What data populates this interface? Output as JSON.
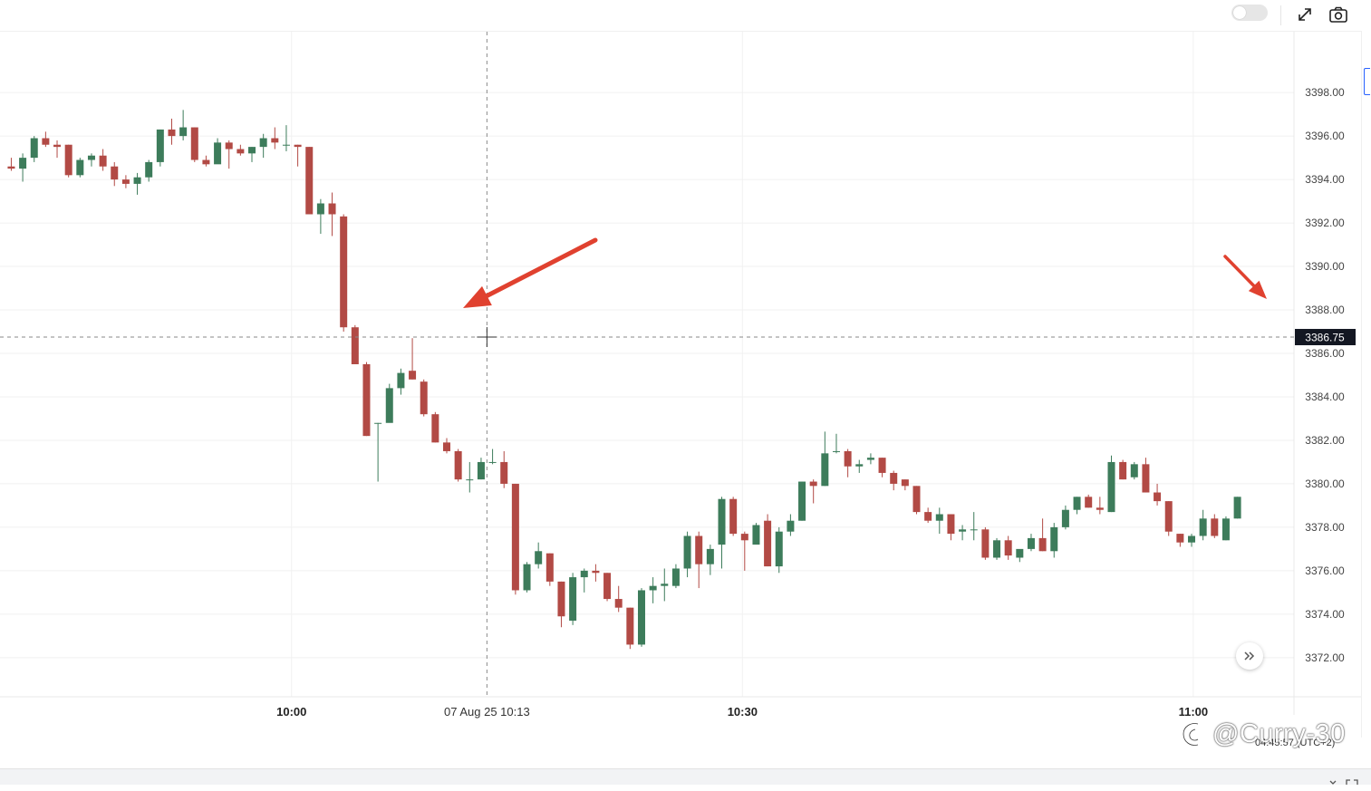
{
  "toolbar": {
    "toggle_state": "off",
    "icons": [
      "fullscreen-icon",
      "camera-icon"
    ]
  },
  "crosshair": {
    "time_label": "07 Aug 25 10:13",
    "price_label": "3386.75"
  },
  "footer": {
    "clock": "04:45:57 (UTC+2)",
    "watermark": "@Curry-30",
    "watermark_icon": "weibo-logo-icon"
  },
  "colors": {
    "up": "#3d7c5b",
    "down": "#b24a45",
    "arrow": "#e0412f",
    "grid": "#f1f1f1",
    "price_tag_bg": "#131722"
  },
  "chart_data": {
    "type": "candlestick",
    "x_tick_labels": [
      "10:00",
      "10:30",
      "11:00"
    ],
    "y_tick_labels": [
      "3398.00",
      "3396.00",
      "3394.00",
      "3392.00",
      "3390.00",
      "3388.00",
      "3386.00",
      "3384.00",
      "3382.00",
      "3380.00",
      "3378.00",
      "3376.00",
      "3374.00",
      "3372.00"
    ],
    "ylim": [
      3370.2,
      3400.8
    ],
    "xlim_minutes_from_10": [
      -19.4,
      66.7
    ],
    "grid": true,
    "candles_ohlc": [
      [
        3394.6,
        3395.0,
        3394.4,
        3394.5
      ],
      [
        3394.5,
        3395.2,
        3393.9,
        3395.0
      ],
      [
        3395.0,
        3396.0,
        3394.8,
        3395.9
      ],
      [
        3395.9,
        3396.2,
        3395.5,
        3395.6
      ],
      [
        3395.6,
        3395.8,
        3395.0,
        3395.5
      ],
      [
        3395.6,
        3395.6,
        3394.1,
        3394.2
      ],
      [
        3394.2,
        3395.0,
        3394.1,
        3394.9
      ],
      [
        3394.9,
        3395.2,
        3394.6,
        3395.1
      ],
      [
        3395.1,
        3395.4,
        3394.4,
        3394.6
      ],
      [
        3394.6,
        3394.8,
        3393.7,
        3394.0
      ],
      [
        3394.0,
        3394.2,
        3393.6,
        3393.8
      ],
      [
        3393.8,
        3394.3,
        3393.3,
        3394.1
      ],
      [
        3394.1,
        3394.9,
        3393.9,
        3394.8
      ],
      [
        3394.8,
        3396.3,
        3394.6,
        3396.3
      ],
      [
        3396.3,
        3396.8,
        3395.6,
        3396.0
      ],
      [
        3396.0,
        3397.2,
        3395.8,
        3396.4
      ],
      [
        3396.4,
        3396.4,
        3394.8,
        3394.9
      ],
      [
        3394.9,
        3395.1,
        3394.6,
        3394.7
      ],
      [
        3394.7,
        3395.9,
        3394.8,
        3395.7
      ],
      [
        3395.7,
        3395.8,
        3394.5,
        3395.4
      ],
      [
        3395.4,
        3395.6,
        3395.1,
        3395.2
      ],
      [
        3395.2,
        3395.5,
        3394.8,
        3395.5
      ],
      [
        3395.5,
        3396.1,
        3395.0,
        3395.9
      ],
      [
        3395.9,
        3396.4,
        3395.4,
        3395.7
      ],
      [
        3395.6,
        3396.5,
        3395.3,
        3395.6
      ],
      [
        3395.6,
        3395.6,
        3394.6,
        3395.5
      ],
      [
        3395.5,
        3395.5,
        3392.4,
        3392.4
      ],
      [
        3392.4,
        3393.1,
        3391.5,
        3392.9
      ],
      [
        3392.9,
        3393.4,
        3391.4,
        3392.4
      ],
      [
        3392.3,
        3392.4,
        3387.0,
        3387.2
      ],
      [
        3387.2,
        3387.3,
        3385.5,
        3385.5
      ],
      [
        3385.5,
        3385.6,
        3382.2,
        3382.2
      ],
      [
        3382.8,
        3382.8,
        3380.1,
        3382.8
      ],
      [
        3382.8,
        3384.6,
        3382.9,
        3384.4
      ],
      [
        3384.4,
        3385.3,
        3384.1,
        3385.1
      ],
      [
        3385.2,
        3386.7,
        3384.8,
        3384.8
      ],
      [
        3384.7,
        3384.8,
        3383.1,
        3383.2
      ],
      [
        3383.2,
        3383.3,
        3381.9,
        3381.9
      ],
      [
        3381.9,
        3382.1,
        3381.4,
        3381.5
      ],
      [
        3381.5,
        3381.6,
        3380.1,
        3380.2
      ],
      [
        3380.2,
        3381.0,
        3379.6,
        3380.2
      ],
      [
        3380.2,
        3381.2,
        3380.2,
        3381.0
      ],
      [
        3381.0,
        3381.6,
        3380.9,
        3381.0
      ],
      [
        3381.0,
        3381.5,
        3379.8,
        3380.0
      ],
      [
        3380.0,
        3380.0,
        3374.9,
        3375.1
      ],
      [
        3375.1,
        3376.4,
        3375.0,
        3376.3
      ],
      [
        3376.3,
        3377.3,
        3376.1,
        3376.9
      ],
      [
        3376.8,
        3376.8,
        3375.3,
        3375.5
      ],
      [
        3375.5,
        3375.5,
        3373.4,
        3373.9
      ],
      [
        3373.7,
        3375.9,
        3373.5,
        3375.7
      ],
      [
        3375.7,
        3376.1,
        3375.0,
        3376.0
      ],
      [
        3376.0,
        3376.3,
        3375.5,
        3375.9
      ],
      [
        3375.9,
        3375.9,
        3374.6,
        3374.7
      ],
      [
        3374.7,
        3375.3,
        3374.1,
        3374.3
      ],
      [
        3374.3,
        3374.3,
        3372.4,
        3372.6
      ],
      [
        3372.6,
        3375.2,
        3372.5,
        3375.1
      ],
      [
        3375.1,
        3375.7,
        3374.5,
        3375.3
      ],
      [
        3375.3,
        3376.1,
        3374.6,
        3375.4
      ],
      [
        3375.3,
        3376.3,
        3375.2,
        3376.1
      ],
      [
        3376.1,
        3377.8,
        3375.7,
        3377.6
      ],
      [
        3377.6,
        3377.8,
        3375.2,
        3376.3
      ],
      [
        3376.3,
        3377.2,
        3375.8,
        3377.0
      ],
      [
        3377.2,
        3379.4,
        3376.1,
        3379.3
      ],
      [
        3379.3,
        3379.4,
        3377.6,
        3377.7
      ],
      [
        3377.7,
        3377.8,
        3376.0,
        3377.4
      ],
      [
        3377.2,
        3378.2,
        3377.3,
        3378.1
      ],
      [
        3378.3,
        3378.6,
        3376.2,
        3376.2
      ],
      [
        3376.2,
        3378.0,
        3375.9,
        3377.8
      ],
      [
        3377.8,
        3378.6,
        3377.6,
        3378.3
      ],
      [
        3378.3,
        3380.1,
        3378.3,
        3380.1
      ],
      [
        3380.1,
        3380.2,
        3379.1,
        3379.9
      ],
      [
        3379.9,
        3382.4,
        3379.9,
        3381.4
      ],
      [
        3381.5,
        3382.3,
        3381.4,
        3381.5
      ],
      [
        3381.5,
        3381.6,
        3380.3,
        3380.8
      ],
      [
        3380.8,
        3381.1,
        3380.5,
        3380.9
      ],
      [
        3381.1,
        3381.4,
        3380.9,
        3381.2
      ],
      [
        3381.2,
        3381.2,
        3380.3,
        3380.5
      ],
      [
        3380.5,
        3380.6,
        3379.7,
        3380.0
      ],
      [
        3380.2,
        3380.2,
        3379.7,
        3379.9
      ],
      [
        3379.9,
        3379.9,
        3378.6,
        3378.7
      ],
      [
        3378.7,
        3378.9,
        3378.2,
        3378.3
      ],
      [
        3378.3,
        3378.9,
        3377.7,
        3378.6
      ],
      [
        3378.6,
        3378.6,
        3377.4,
        3377.7
      ],
      [
        3377.8,
        3378.1,
        3377.4,
        3377.9
      ],
      [
        3377.9,
        3378.7,
        3377.4,
        3377.9
      ],
      [
        3377.9,
        3378.0,
        3376.5,
        3376.6
      ],
      [
        3376.6,
        3377.5,
        3376.5,
        3377.4
      ],
      [
        3377.4,
        3377.6,
        3376.5,
        3376.7
      ],
      [
        3376.6,
        3376.8,
        3376.4,
        3377.0
      ],
      [
        3377.0,
        3377.7,
        3376.9,
        3377.5
      ],
      [
        3377.5,
        3378.4,
        3376.9,
        3376.9
      ],
      [
        3376.9,
        3378.2,
        3376.6,
        3378.0
      ],
      [
        3378.0,
        3379.0,
        3377.9,
        3378.8
      ],
      [
        3378.8,
        3379.4,
        3378.6,
        3379.4
      ],
      [
        3379.4,
        3379.5,
        3378.9,
        3378.9
      ],
      [
        3378.9,
        3379.4,
        3378.6,
        3378.8
      ],
      [
        3378.7,
        3381.3,
        3378.7,
        3381.0
      ],
      [
        3381.0,
        3381.1,
        3380.2,
        3380.2
      ],
      [
        3380.3,
        3381.0,
        3380.2,
        3380.9
      ],
      [
        3380.9,
        3381.2,
        3379.6,
        3379.6
      ],
      [
        3379.6,
        3380.0,
        3379.0,
        3379.2
      ],
      [
        3379.2,
        3379.2,
        3377.6,
        3377.8
      ],
      [
        3377.7,
        3377.7,
        3377.1,
        3377.3
      ],
      [
        3377.3,
        3377.7,
        3377.1,
        3377.6
      ],
      [
        3377.6,
        3378.8,
        3377.4,
        3378.4
      ],
      [
        3378.4,
        3378.6,
        3377.5,
        3377.6
      ],
      [
        3377.4,
        3378.5,
        3377.4,
        3378.4
      ],
      [
        3378.4,
        3379.4,
        3378.4,
        3379.4
      ]
    ]
  }
}
